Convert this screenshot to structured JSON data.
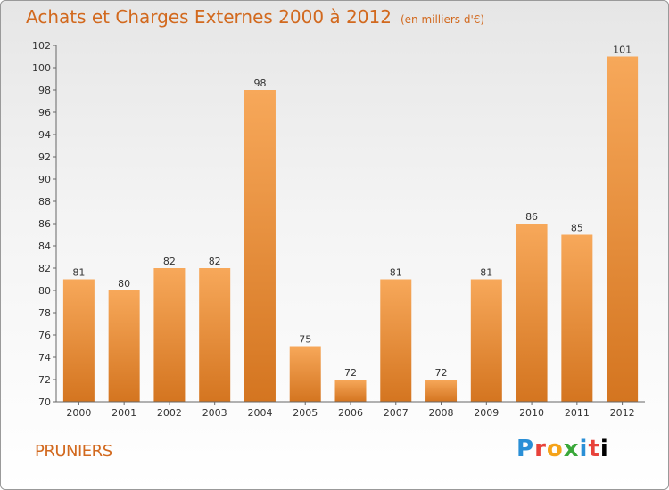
{
  "header": {
    "title": "Achats et Charges Externes 2000 à 2012",
    "unit": "(en milliers d'€)"
  },
  "footer": {
    "commune": "PRUNIERS",
    "brand_letters": [
      "P",
      "r",
      "o",
      "x",
      "i",
      "t",
      "i"
    ]
  },
  "colors": {
    "accent": "#d2691e",
    "bar_light": "#f7a85a",
    "bar_dark": "#d47520"
  },
  "chart_data": {
    "type": "bar",
    "title": "Achats et Charges Externes 2000 à 2012",
    "subtitle": "(en milliers d'€)",
    "categories": [
      "2000",
      "2001",
      "2002",
      "2003",
      "2004",
      "2005",
      "2006",
      "2007",
      "2008",
      "2009",
      "2010",
      "2011",
      "2012"
    ],
    "values": [
      81,
      80,
      82,
      82,
      98,
      75,
      72,
      81,
      72,
      81,
      86,
      85,
      101
    ],
    "ylim": [
      70,
      102
    ],
    "yticks": [
      70,
      72,
      74,
      76,
      78,
      80,
      82,
      84,
      86,
      88,
      90,
      92,
      94,
      96,
      98,
      100,
      102
    ],
    "grid": false,
    "data_labels": true
  }
}
